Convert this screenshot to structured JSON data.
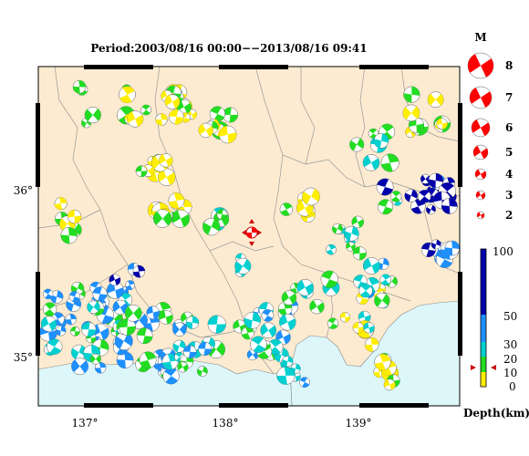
{
  "title": "Period:2003/08/16 00:00−−2013/08/16 09:41",
  "map": {
    "lon_ticks": [
      "137°",
      "138°",
      "139°"
    ],
    "lat_ticks": [
      "36°",
      "35°"
    ]
  },
  "magnitude_legend": {
    "title": "M",
    "levels": [
      "8",
      "7",
      "6",
      "5",
      "4",
      "3",
      "2"
    ]
  },
  "depth_legend": {
    "title": "Depth(km)",
    "ticks": [
      "100",
      "50",
      "30",
      "20",
      "10",
      "0"
    ],
    "colors": {
      "0-10": "#ffee00",
      "10-20": "#22dd22",
      "20-30": "#00d0d0",
      "30-50": "#1e90ff",
      "50-100": "#0000aa"
    }
  },
  "colors": {
    "land": "#fcebd0",
    "sea": "#dcf6fa",
    "mainshock": "#ff0000"
  },
  "icons": [
    "focal-mechanism-beachball-icon",
    "epicenter-star-icon",
    "depth-arrow-icon"
  ]
}
